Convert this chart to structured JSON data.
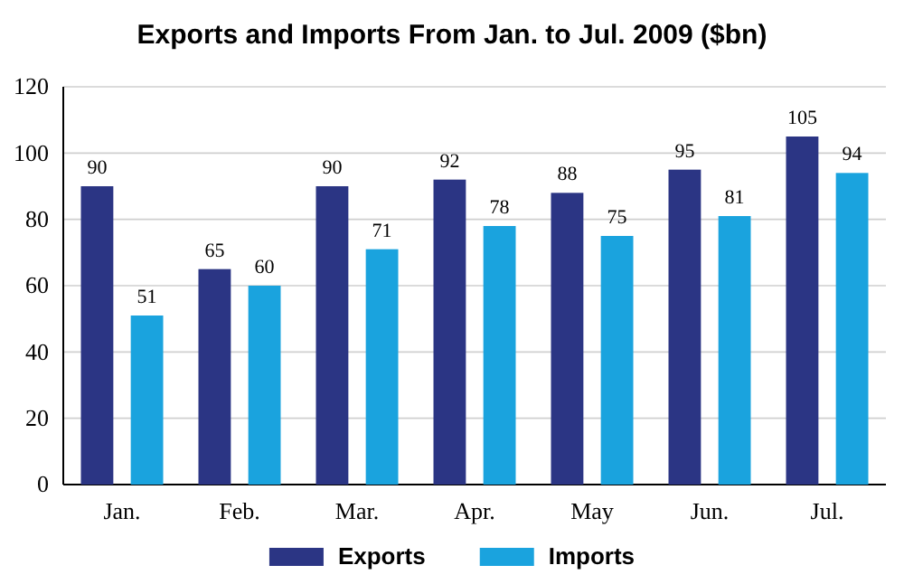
{
  "chart_data": {
    "type": "bar",
    "title": "Exports and Imports From Jan. to Jul. 2009 ($bn)",
    "categories": [
      "Jan.",
      "Feb.",
      "Mar.",
      "Apr.",
      "May",
      "Jun.",
      "Jul."
    ],
    "series": [
      {
        "name": "Exports",
        "color": "#2b3584",
        "values": [
          90,
          65,
          90,
          92,
          88,
          95,
          105
        ]
      },
      {
        "name": "Imports",
        "color": "#1aa3de",
        "values": [
          51,
          60,
          71,
          78,
          75,
          81,
          94
        ]
      }
    ],
    "ylim": [
      0,
      120
    ],
    "yticks": [
      0,
      20,
      40,
      60,
      80,
      100,
      120
    ],
    "grid": "y",
    "legend": "bottom",
    "data_labels": true
  }
}
